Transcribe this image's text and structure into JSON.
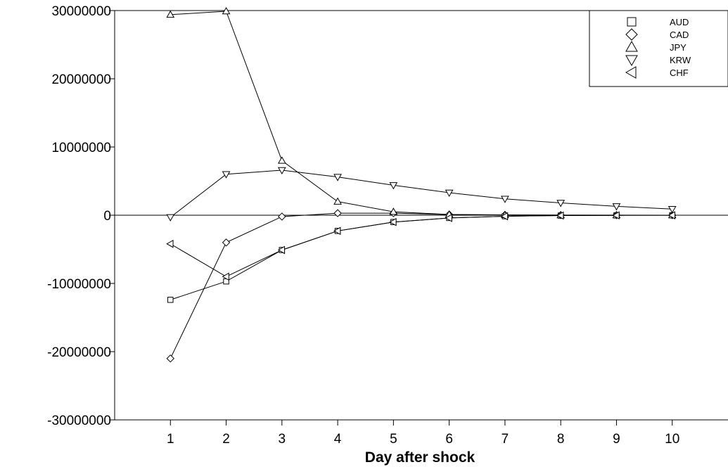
{
  "chart_data": {
    "type": "line",
    "title": "",
    "xlabel": "Day after shock",
    "ylabel": "",
    "x": [
      1,
      2,
      3,
      4,
      5,
      6,
      7,
      8,
      9,
      10
    ],
    "x_tick_labels": [
      "1",
      "2",
      "3",
      "4",
      "5",
      "6",
      "7",
      "8",
      "9",
      "10"
    ],
    "xlim": [
      0,
      11
    ],
    "ylim": [
      -30000000,
      30000000
    ],
    "y_ticks": [
      30000000,
      20000000,
      10000000,
      0,
      -10000000,
      -20000000,
      -30000000
    ],
    "y_tick_labels": [
      "30000000",
      "20000000",
      "10000000",
      "0",
      "-10000000",
      "-20000000",
      "-30000000"
    ],
    "zero_line": true,
    "grid": false,
    "legend_position": "top-right",
    "series": [
      {
        "name": "AUD",
        "marker": "square",
        "values": [
          -12400000,
          -9700000,
          -5100000,
          -2300000,
          -1000000,
          -400000,
          -150000,
          -50000,
          -20000,
          -10000
        ]
      },
      {
        "name": "CAD",
        "marker": "diamond",
        "values": [
          -21000000,
          -4000000,
          -200000,
          300000,
          300000,
          100000,
          50000,
          20000,
          10000,
          5000
        ]
      },
      {
        "name": "JPY",
        "marker": "triangle-up",
        "values": [
          29400000,
          29900000,
          8000000,
          2000000,
          500000,
          100000,
          20000,
          5000,
          2000,
          1000
        ]
      },
      {
        "name": "KRW",
        "marker": "triangle-down",
        "values": [
          -300000,
          6000000,
          6600000,
          5600000,
          4400000,
          3300000,
          2400000,
          1800000,
          1300000,
          900000
        ]
      },
      {
        "name": "CHF",
        "marker": "triangle-left",
        "values": [
          -4200000,
          -9000000,
          -5100000,
          -2300000,
          -1000000,
          -400000,
          -150000,
          -50000,
          -20000,
          -10000
        ]
      }
    ]
  }
}
